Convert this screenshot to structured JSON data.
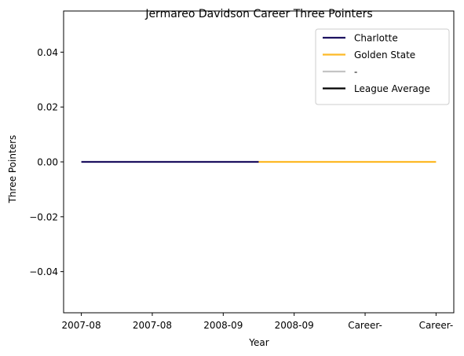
{
  "chart_data": {
    "type": "line",
    "title": "Jermareo Davidson Career Three Pointers",
    "xlabel": "Year",
    "ylabel": "Three Pointers",
    "categories": [
      "2007-08",
      "2007-08",
      "2008-09",
      "2008-09",
      "Career-",
      "Career-"
    ],
    "ylim": [
      -0.055,
      0.055
    ],
    "yticks": [
      -0.04,
      -0.02,
      0.0,
      0.02,
      0.04
    ],
    "ytick_labels": [
      "−0.04",
      "−0.02",
      "0.00",
      "0.02",
      "0.04"
    ],
    "grid": false,
    "legend_position": "top-right",
    "series": [
      {
        "name": "Charlotte",
        "color": "#1d1160",
        "segment": [
          0,
          2.5
        ],
        "y": 0
      },
      {
        "name": "Golden State",
        "color": "#fdb927",
        "segment": [
          2.5,
          5
        ],
        "y": 0
      },
      {
        "name": "-",
        "color": "#c4c4c4",
        "segment": null,
        "y": 0
      },
      {
        "name": "League Average",
        "color": "#000000",
        "segment": null,
        "y": 0
      }
    ]
  }
}
